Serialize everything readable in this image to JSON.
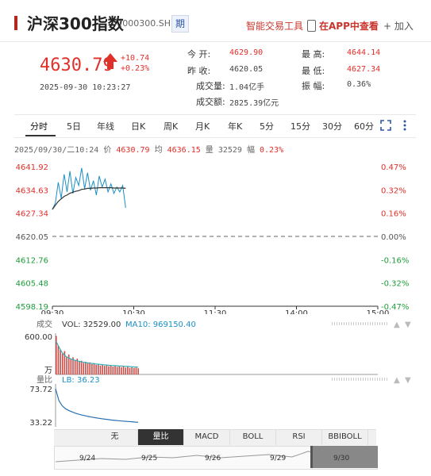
{
  "header": {
    "title": "沪深300指数",
    "code": "(000300.SH)",
    "futures_button": "期",
    "tools_link": "智能交易工具",
    "app_link": "在APP中查看",
    "add_button": "+ 加入"
  },
  "quote": {
    "price": "4630.79",
    "change": "+10.74",
    "change_pct": "+0.23%",
    "datetime": "2025-09-30  10:23:27",
    "open_label": "今    开:",
    "open": "4629.90",
    "prev_close_label": "昨    收:",
    "prev_close": "4620.05",
    "volume_label": "成交量:",
    "volume": "1.04亿手",
    "amount_label": "成交额:",
    "amount": "2825.39亿元",
    "high_label": "最    高:",
    "high": "4644.14",
    "low_label": "最    低:",
    "low": "4627.34",
    "amplitude_label": "振    幅:",
    "amplitude": "0.36%"
  },
  "tabs": [
    "分时",
    "5日",
    "年线",
    "日K",
    "周K",
    "月K",
    "年K",
    "5分",
    "15分",
    "30分",
    "60分"
  ],
  "active_tab": "分时",
  "info_line": {
    "date": "2025/09/30/二10:24",
    "price_label": "价",
    "price": "4630.79",
    "avg_label": "均",
    "avg": "4636.15",
    "vol_label": "量",
    "vol": "32529",
    "amp_label": "幅",
    "amp": "0.23%"
  },
  "chart_data": {
    "type": "line",
    "y_left_ticks": [
      "4641.92",
      "4634.63",
      "4627.34",
      "4620.05",
      "4612.76",
      "4605.48",
      "4598.19"
    ],
    "y_right_ticks": [
      "0.47%",
      "0.32%",
      "0.16%",
      "0.00%",
      "-0.16%",
      "-0.32%",
      "-0.47%"
    ],
    "x_ticks": [
      "09:30",
      "10:30",
      "11:30",
      "14:00",
      "15:00"
    ],
    "ylim": [
      4598.19,
      4641.92
    ],
    "series": [
      {
        "values": [
          4628.5,
          4630.5,
          4637.0,
          4632.0,
          4639.5,
          4634.0,
          4640.5,
          4633.5,
          4638.5,
          4636.0,
          4641.5,
          4635.0,
          4640.0,
          4634.5,
          4637.5,
          4633.0,
          4639.0,
          4635.5,
          4638.0,
          4634.0,
          4636.5,
          4633.5,
          4635.5,
          4634.0,
          4636.0,
          4629.0
        ]
      },
      {
        "values": [
          4628.5,
          4629.8,
          4631.0,
          4631.8,
          4632.6,
          4633.0,
          4633.6,
          4633.9,
          4634.2,
          4634.4,
          4634.8,
          4634.9,
          4635.1,
          4635.1,
          4635.2,
          4635.2,
          4635.3,
          4635.3,
          4635.3,
          4635.3,
          4635.3,
          4635.2,
          4635.2,
          4635.2,
          4635.2,
          4635.1
        ]
      }
    ],
    "volume": {
      "label": "成交",
      "vol_label": "VOL:",
      "vol": "32529.00",
      "ma_label": "MA10:",
      "ma": "969150.40",
      "y_tick": "600.00",
      "unit": "万",
      "values": [
        560,
        420,
        360,
        300,
        340,
        260,
        290,
        230,
        250,
        210,
        230,
        190,
        200,
        170,
        185,
        160,
        175,
        150,
        165,
        140,
        155,
        130,
        145,
        125,
        135,
        120,
        130,
        115,
        125,
        110,
        120,
        105,
        115,
        100,
        110,
        95,
        105,
        95,
        100,
        90
      ],
      "ma_values": [
        480,
        420,
        360,
        310,
        280,
        255,
        240,
        225,
        215,
        205,
        198,
        190,
        184,
        178,
        173,
        168,
        164,
        160,
        156,
        152,
        149,
        146,
        143,
        140,
        137,
        134,
        132,
        130,
        128,
        126,
        124,
        122,
        120,
        118,
        116,
        114,
        112,
        110,
        108,
        106
      ]
    },
    "ratio": {
      "label": "量比",
      "lb_label": "LB:",
      "lb": "36.23",
      "y_ticks": [
        "73.72",
        "33.22"
      ],
      "ylim": [
        33.22,
        73.72
      ],
      "values": [
        73.72,
        60.0,
        54.0,
        50.5,
        48.5,
        46.8,
        45.4,
        44.2,
        43.2,
        42.3,
        41.5,
        40.8,
        40.1,
        39.5,
        38.9,
        38.4,
        37.9,
        37.4,
        37.0,
        36.6,
        36.3,
        36.0,
        35.7,
        35.4,
        35.1,
        34.8
      ]
    }
  },
  "indicator_tabs": [
    "无",
    "量比",
    "MACD",
    "BOLL",
    "RSI",
    "BBIBOLL"
  ],
  "active_indicator": "量比",
  "navigator_dates": [
    "9/24",
    "9/25",
    "9/26",
    "9/29",
    "9/30"
  ],
  "colors": {
    "up": "#e0302a",
    "down": "#1f9d3a",
    "price_line": "#1b8fc4",
    "avg_line": "#333333",
    "vol_bar": "#c94d49",
    "vol_ma": "#35b0b9"
  }
}
